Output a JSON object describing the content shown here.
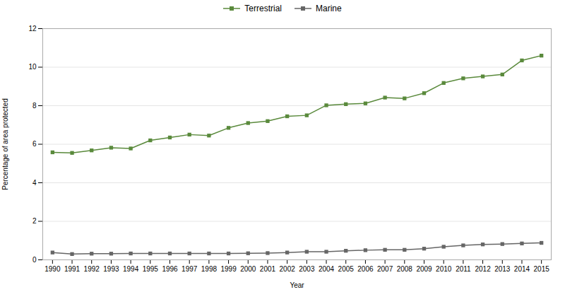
{
  "chart_data": {
    "type": "line",
    "x": [
      1990,
      1991,
      1992,
      1993,
      1994,
      1995,
      1996,
      1997,
      1998,
      1999,
      2000,
      2001,
      2002,
      2003,
      2004,
      2005,
      2006,
      2007,
      2008,
      2009,
      2010,
      2011,
      2012,
      2013,
      2014,
      2015
    ],
    "series": [
      {
        "name": "Terrestrial",
        "color": "#5a8a3c",
        "values": [
          5.58,
          5.55,
          5.68,
          5.82,
          5.78,
          6.2,
          6.35,
          6.5,
          6.45,
          6.85,
          7.1,
          7.2,
          7.45,
          7.5,
          8.02,
          8.08,
          8.12,
          8.42,
          8.38,
          8.65,
          9.18,
          9.42,
          9.52,
          9.62,
          10.35,
          10.6
        ]
      },
      {
        "name": "Marine",
        "color": "#666666",
        "values": [
          0.38,
          0.3,
          0.32,
          0.32,
          0.33,
          0.33,
          0.33,
          0.33,
          0.33,
          0.33,
          0.34,
          0.35,
          0.38,
          0.42,
          0.42,
          0.47,
          0.5,
          0.52,
          0.52,
          0.58,
          0.68,
          0.75,
          0.8,
          0.82,
          0.85,
          0.88
        ]
      }
    ],
    "xlabel": "Year",
    "ylabel": "Percentage of area protected",
    "xlim": [
      1989.5,
      2015.5
    ],
    "xticks": [
      1990,
      1991,
      1992,
      1993,
      1994,
      1995,
      1996,
      1997,
      1998,
      1999,
      2000,
      2001,
      2002,
      2003,
      2004,
      2005,
      2006,
      2007,
      2008,
      2009,
      2010,
      2011,
      2012,
      2013,
      2014,
      2015
    ],
    "ylim": [
      0,
      12
    ],
    "yticks": [
      0,
      2,
      4,
      6,
      8,
      10,
      12
    ],
    "grid": true,
    "legend": "top",
    "marker": "square"
  }
}
